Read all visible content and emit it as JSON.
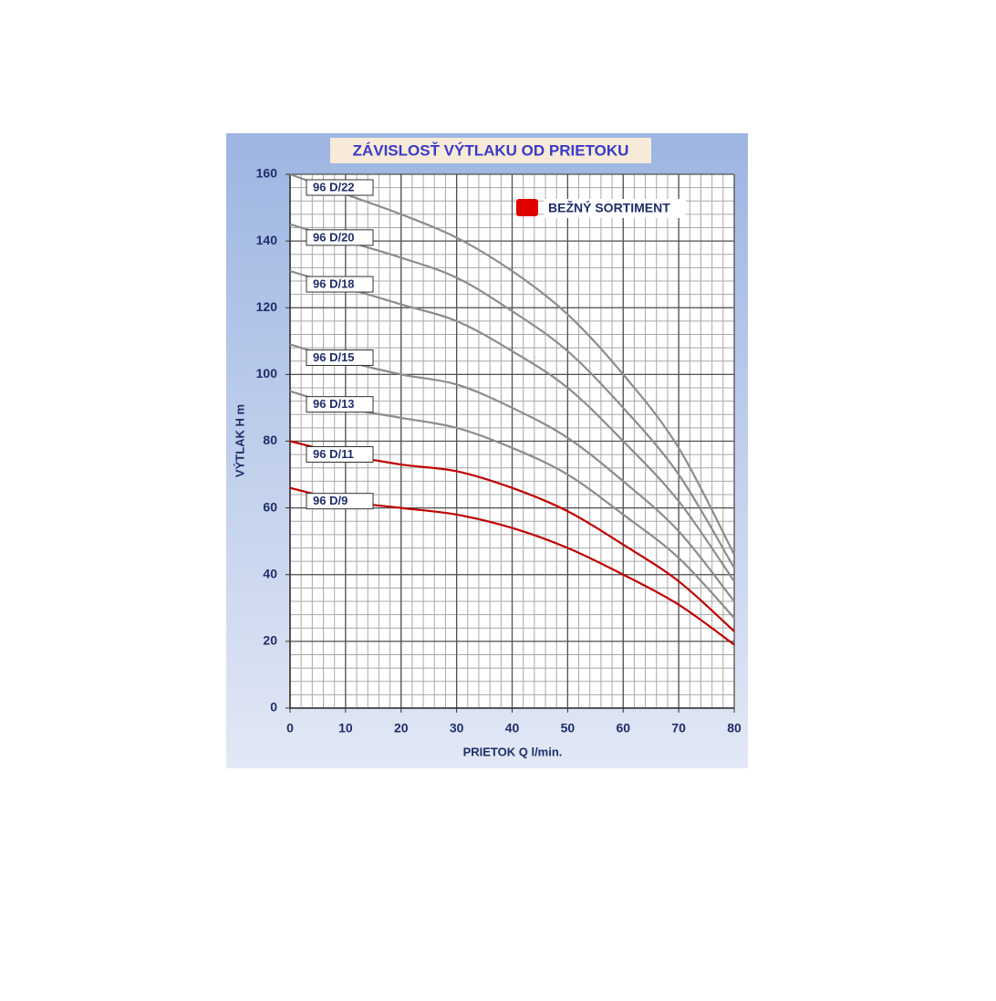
{
  "chart_data": {
    "type": "line",
    "title": "ZÁVISLOSŤ VÝTLAKU OD PRIETOKU",
    "x_label": "PRIETOK Q l/min.",
    "y_label": "VÝTLAK H m",
    "x": [
      0,
      10,
      20,
      30,
      40,
      50,
      60,
      70,
      80
    ],
    "xlim": [
      0,
      80
    ],
    "xticks": [
      0,
      10,
      20,
      30,
      40,
      50,
      60,
      70,
      80
    ],
    "ylim": [
      0,
      160
    ],
    "yticks": [
      0,
      20,
      40,
      60,
      80,
      100,
      120,
      140,
      160
    ],
    "grid": true,
    "minor_grid_step": [
      2,
      4
    ],
    "legend": {
      "label": "BEŽNÝ SORTIMENT",
      "color": "#e00000",
      "position": "upper right"
    },
    "series": [
      {
        "name": "96 D/22",
        "color": "#8c8c8c",
        "values": [
          160,
          154,
          148,
          141,
          131,
          118,
          100,
          78,
          46
        ]
      },
      {
        "name": "96 D/20",
        "color": "#8c8c8c",
        "values": [
          145,
          140,
          135,
          129,
          119,
          107,
          90,
          70,
          42
        ]
      },
      {
        "name": "96 D/18",
        "color": "#8c8c8c",
        "values": [
          131,
          126,
          121,
          116,
          107,
          96,
          80,
          62,
          38
        ]
      },
      {
        "name": "96 D/15",
        "color": "#8c8c8c",
        "values": [
          109,
          104,
          100,
          97,
          90,
          81,
          68,
          53,
          32
        ]
      },
      {
        "name": "96 D/13",
        "color": "#8c8c8c",
        "values": [
          95,
          90,
          87,
          84,
          78,
          70,
          58,
          45,
          27
        ]
      },
      {
        "name": "96 D/11",
        "color": "#c00000",
        "values": [
          80,
          76,
          73,
          71,
          66,
          59,
          49,
          38,
          23
        ]
      },
      {
        "name": "96 D/9",
        "color": "#c00000",
        "values": [
          66,
          62,
          60,
          58,
          54,
          48,
          40,
          31,
          19
        ]
      }
    ]
  }
}
